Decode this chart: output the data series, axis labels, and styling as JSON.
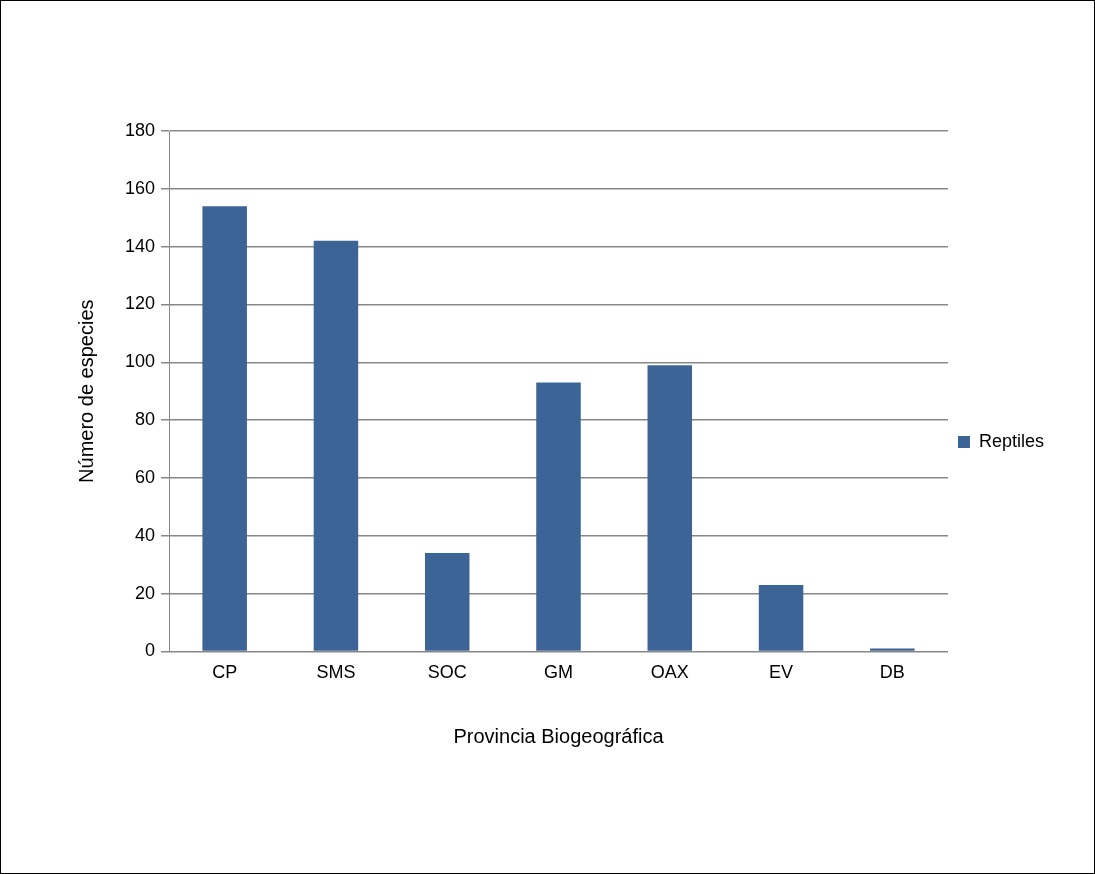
{
  "chart_data": {
    "type": "bar",
    "xlabel": "Provincia Biogeográfica",
    "ylabel": "Número de especies",
    "categories": [
      "CP",
      "SMS",
      "SOC",
      "GM",
      "OAX",
      "EV",
      "DB"
    ],
    "series": [
      {
        "name": "Reptiles",
        "color": "#3c6496",
        "values": [
          154,
          142,
          34,
          93,
          99,
          23,
          1
        ]
      }
    ],
    "ylim": [
      0,
      180
    ],
    "yticks": [
      0,
      20,
      40,
      60,
      80,
      100,
      120,
      140,
      160,
      180
    ],
    "grid": "y",
    "legend": "right"
  }
}
